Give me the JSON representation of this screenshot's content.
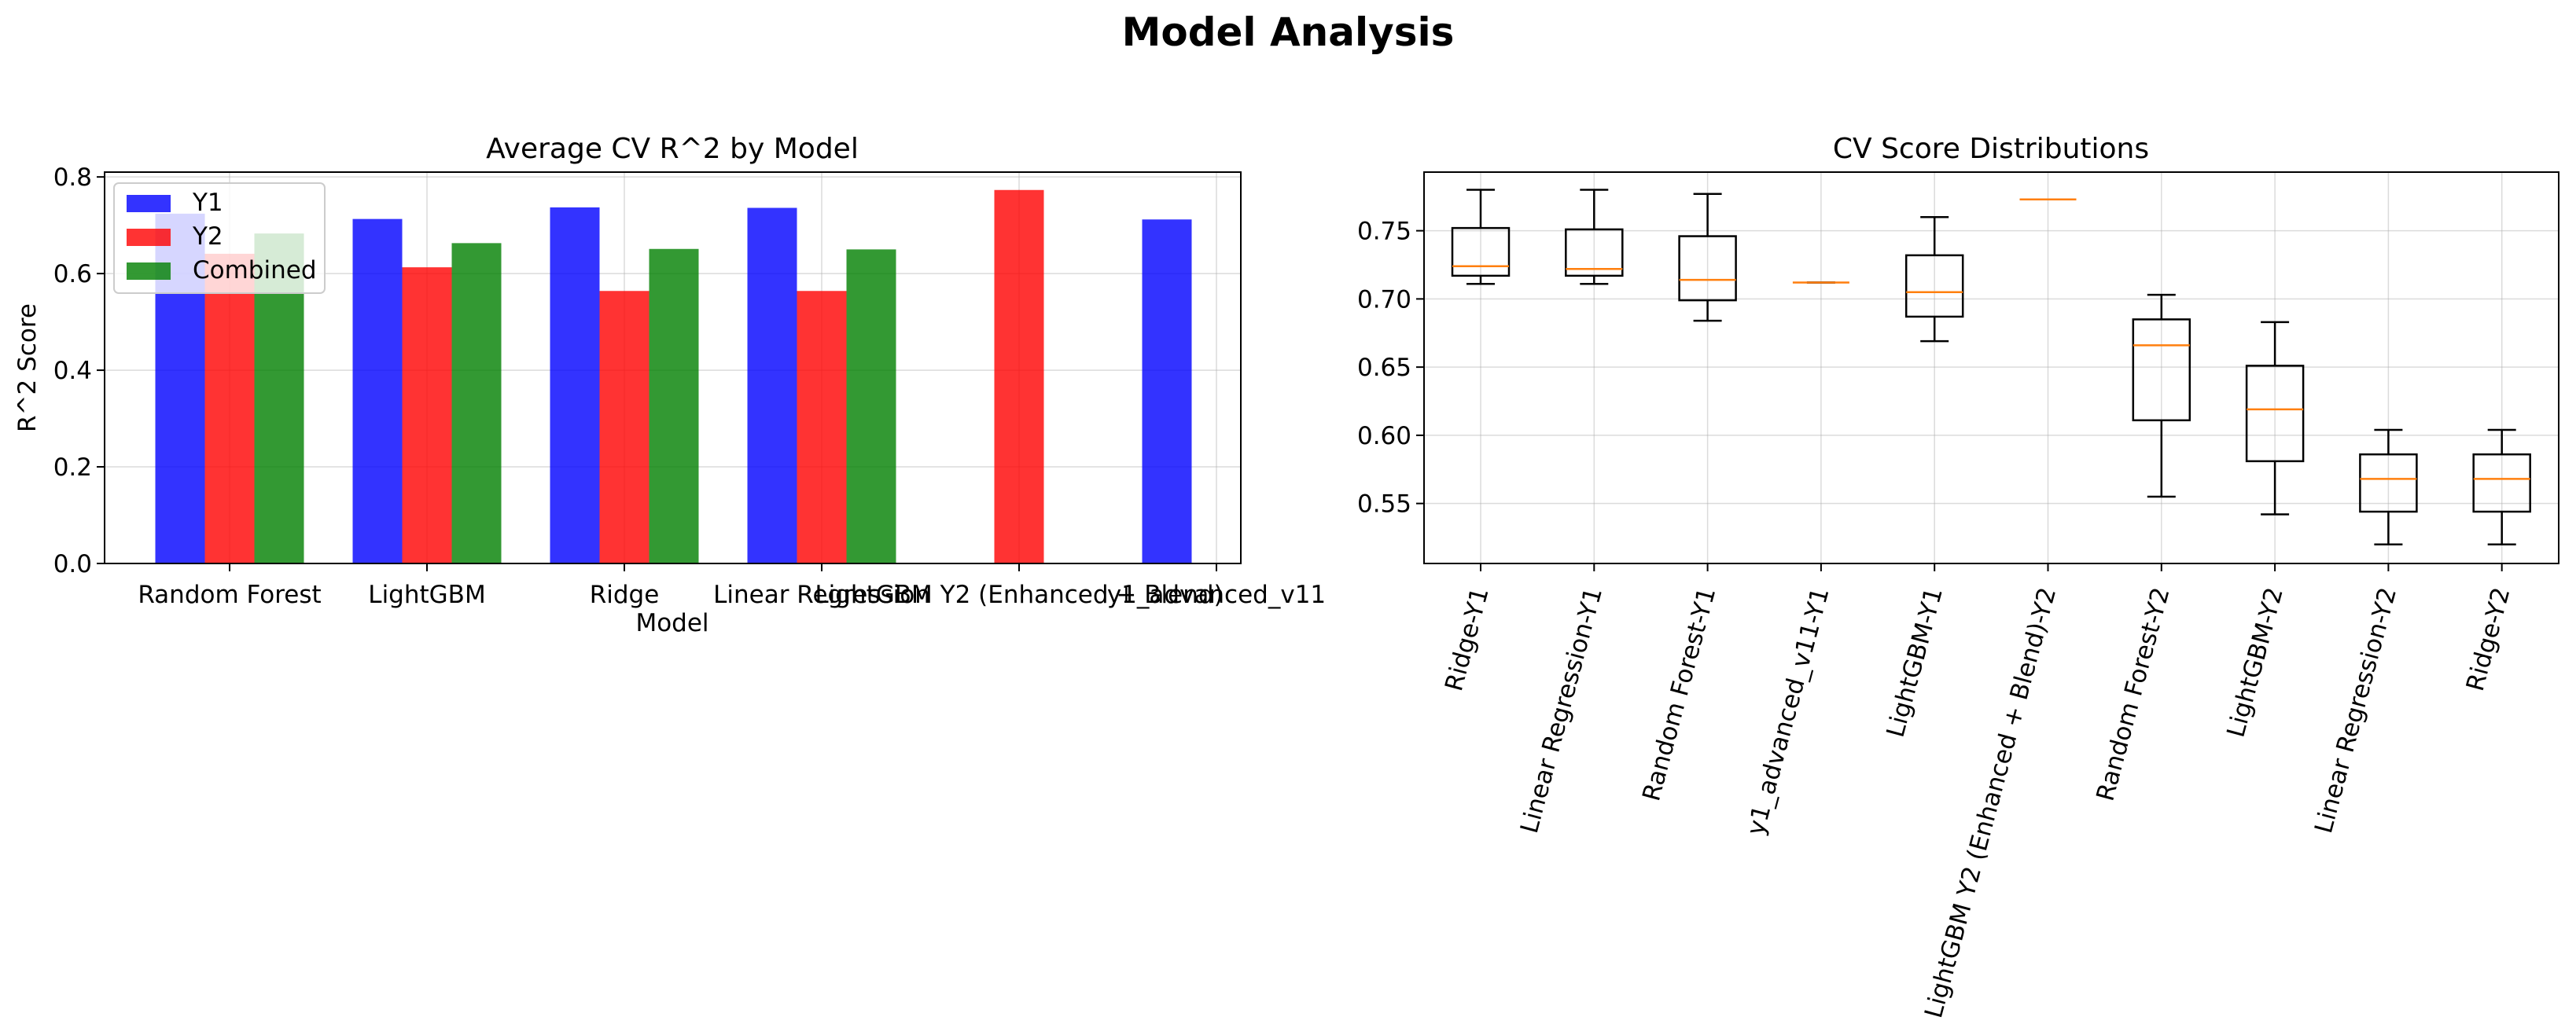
{
  "suptitle": "Model Analysis",
  "chart_data": [
    {
      "type": "bar",
      "title": "Average CV R^2 by Model",
      "xlabel": "Model",
      "ylabel": "R^2 Score",
      "ylim": [
        0,
        0.81
      ],
      "yticks": [
        0.0,
        0.2,
        0.4,
        0.6,
        0.8
      ],
      "grid": true,
      "legend": "upper left",
      "categories": [
        "Random Forest",
        "LightGBM",
        "Ridge",
        "Linear Regression",
        "LightGBM Y2 (Enhanced + Blend)",
        "y1_advanced_v11"
      ],
      "series": [
        {
          "name": "Y1",
          "color": "#0000ff",
          "values": [
            0.724,
            0.713,
            0.737,
            0.736,
            null,
            0.712
          ]
        },
        {
          "name": "Y2",
          "color": "#ff0000",
          "values": [
            0.641,
            0.613,
            0.564,
            0.564,
            0.773,
            null
          ]
        },
        {
          "name": "Combined",
          "color": "#008000",
          "values": [
            0.683,
            0.663,
            0.651,
            0.65,
            null,
            null
          ]
        }
      ]
    },
    {
      "type": "box",
      "title": "CV Score Distributions",
      "ylim": [
        0.506,
        0.793
      ],
      "yticks": [
        0.55,
        0.6,
        0.65,
        0.7,
        0.75
      ],
      "ytick_labels": [
        "0.55",
        "0.60",
        "0.65",
        "0.70",
        "0.75"
      ],
      "grid": true,
      "categories": [
        "Ridge-Y1",
        "Linear Regression-Y1",
        "Random Forest-Y1",
        "y1_advanced_v11-Y1",
        "LightGBM-Y1",
        "LightGBM Y2 (Enhanced + Blend)-Y2",
        "Random Forest-Y2",
        "LightGBM-Y2",
        "Linear Regression-Y2",
        "Ridge-Y2"
      ],
      "boxes": [
        {
          "whislo": 0.711,
          "q1": 0.717,
          "med": 0.724,
          "q3": 0.752,
          "whishi": 0.78
        },
        {
          "whislo": 0.711,
          "q1": 0.717,
          "med": 0.722,
          "q3": 0.751,
          "whishi": 0.78
        },
        {
          "whislo": 0.684,
          "q1": 0.699,
          "med": 0.714,
          "q3": 0.746,
          "whishi": 0.777
        },
        {
          "whislo": 0.712,
          "q1": 0.712,
          "med": 0.712,
          "q3": 0.712,
          "whishi": 0.712
        },
        {
          "whislo": 0.669,
          "q1": 0.687,
          "med": 0.705,
          "q3": 0.732,
          "whishi": 0.76
        },
        {
          "whislo": 0.773,
          "q1": 0.773,
          "med": 0.773,
          "q3": 0.773,
          "whishi": 0.773
        },
        {
          "whislo": 0.555,
          "q1": 0.611,
          "med": 0.666,
          "q3": 0.685,
          "whishi": 0.703
        },
        {
          "whislo": 0.542,
          "q1": 0.581,
          "med": 0.619,
          "q3": 0.651,
          "whishi": 0.683
        },
        {
          "whislo": 0.52,
          "q1": 0.544,
          "med": 0.568,
          "q3": 0.586,
          "whishi": 0.604
        },
        {
          "whislo": 0.52,
          "q1": 0.544,
          "med": 0.568,
          "q3": 0.586,
          "whishi": 0.604
        }
      ]
    }
  ]
}
